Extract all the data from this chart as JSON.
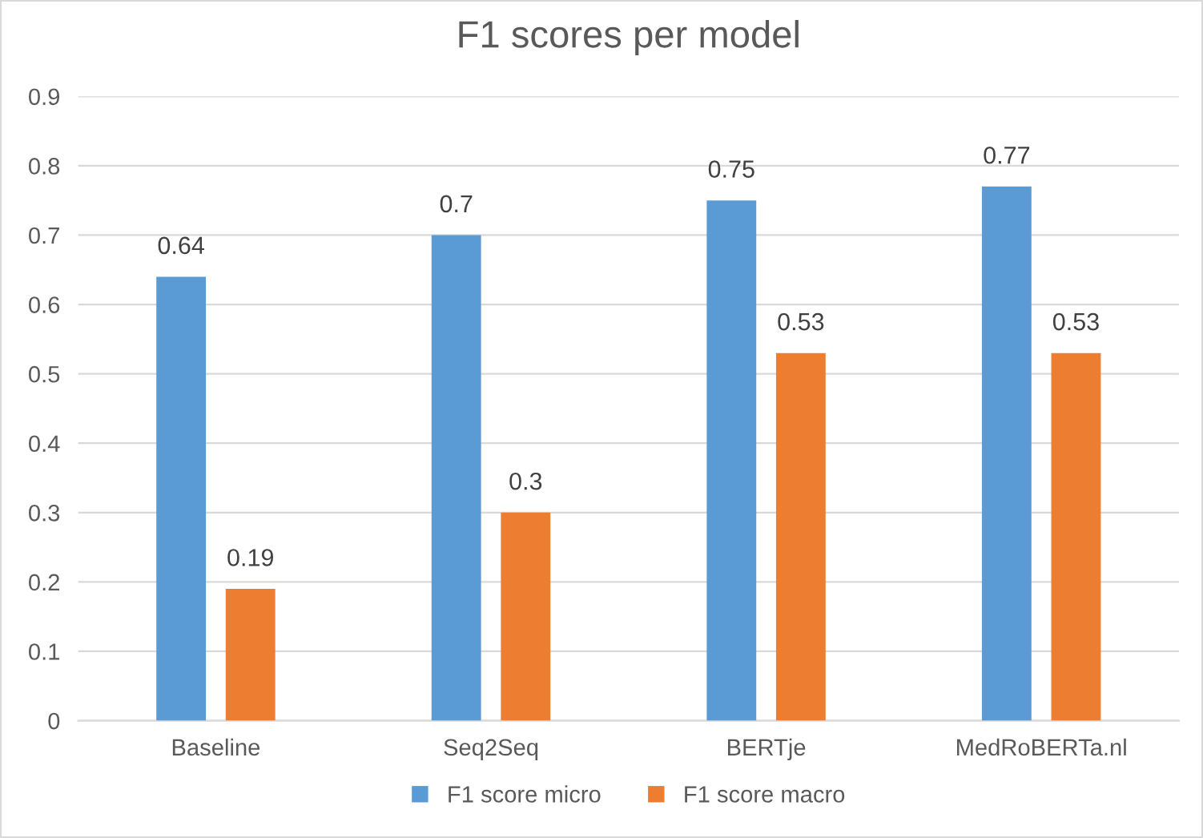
{
  "chart_data": {
    "type": "bar",
    "title": "F1 scores per model",
    "categories": [
      "Baseline",
      "Seq2Seq",
      "BERTje",
      "MedRoBERTa.nl"
    ],
    "series": [
      {
        "name": "F1 score micro",
        "color": "#5b9bd5",
        "values": [
          0.64,
          0.7,
          0.75,
          0.77
        ]
      },
      {
        "name": "F1 score macro",
        "color": "#ed7d31",
        "values": [
          0.19,
          0.3,
          0.53,
          0.53
        ]
      }
    ],
    "ylim": [
      0,
      0.9
    ],
    "yticks": [
      0,
      0.1,
      0.2,
      0.3,
      0.4,
      0.5,
      0.6,
      0.7,
      0.8,
      0.9
    ],
    "grid": "y",
    "legend": "bottom",
    "data_labels": true
  }
}
